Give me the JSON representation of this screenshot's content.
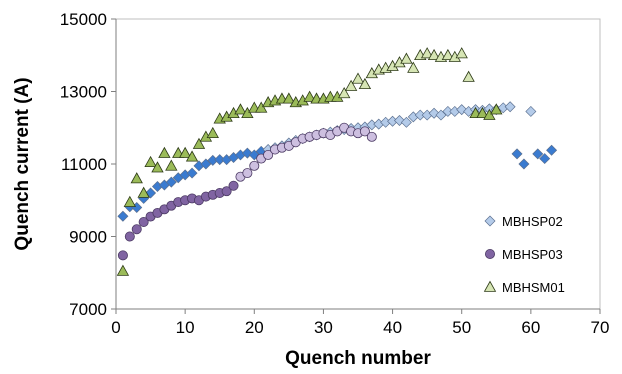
{
  "chart_data": {
    "type": "scatter",
    "title": "",
    "xlabel": "Quench number",
    "ylabel": "Quench current (A)",
    "xlim": [
      0,
      70
    ],
    "ylim": [
      7000,
      15000
    ],
    "xticks": [
      0,
      10,
      20,
      30,
      40,
      50,
      60,
      70
    ],
    "yticks": [
      7000,
      9000,
      11000,
      13000,
      15000
    ],
    "grid": false,
    "legend_position": "bottom-right",
    "series": [
      {
        "name": "MBHSP02",
        "marker": "diamond",
        "color": "#a9c4ea",
        "colors_note": "points drawn in two shades: light #a9c4ea and darker #3f7fc9",
        "points": [
          [
            1,
            9560,
            "dark"
          ],
          [
            2,
            9820,
            "dark"
          ],
          [
            3,
            9800,
            "dark"
          ],
          [
            4,
            10050,
            "dark"
          ],
          [
            5,
            10200,
            "dark"
          ],
          [
            6,
            10380,
            "dark"
          ],
          [
            7,
            10420,
            "dark"
          ],
          [
            8,
            10500,
            "dark"
          ],
          [
            9,
            10620,
            "dark"
          ],
          [
            10,
            10700,
            "dark"
          ],
          [
            11,
            10750,
            "dark"
          ],
          [
            12,
            10950,
            "dark"
          ],
          [
            13,
            11000,
            "dark"
          ],
          [
            14,
            11100,
            "dark"
          ],
          [
            15,
            11120,
            "dark"
          ],
          [
            16,
            11120,
            "dark"
          ],
          [
            17,
            11180,
            "dark"
          ],
          [
            18,
            11250,
            "dark"
          ],
          [
            19,
            11300,
            "dark"
          ],
          [
            20,
            11250,
            "dark"
          ],
          [
            21,
            11350,
            "dark"
          ],
          [
            22,
            11400,
            "light"
          ],
          [
            23,
            11450,
            "light"
          ],
          [
            24,
            11500,
            "light"
          ],
          [
            25,
            11580,
            "light"
          ],
          [
            26,
            11650,
            "light"
          ],
          [
            27,
            11700,
            "light"
          ],
          [
            28,
            11750,
            "light"
          ],
          [
            29,
            11800,
            "light"
          ],
          [
            30,
            11850,
            "light"
          ],
          [
            31,
            11880,
            "light"
          ],
          [
            32,
            11920,
            "light"
          ],
          [
            33,
            11950,
            "light"
          ],
          [
            34,
            11980,
            "light"
          ],
          [
            35,
            12000,
            "light"
          ],
          [
            36,
            12020,
            "light"
          ],
          [
            37,
            12080,
            "light"
          ],
          [
            38,
            12100,
            "light"
          ],
          [
            39,
            12150,
            "light"
          ],
          [
            40,
            12180,
            "light"
          ],
          [
            41,
            12200,
            "light"
          ],
          [
            42,
            12150,
            "light"
          ],
          [
            43,
            12300,
            "light"
          ],
          [
            44,
            12350,
            "light"
          ],
          [
            45,
            12350,
            "light"
          ],
          [
            46,
            12400,
            "light"
          ],
          [
            47,
            12350,
            "light"
          ],
          [
            48,
            12450,
            "light"
          ],
          [
            49,
            12450,
            "light"
          ],
          [
            50,
            12500,
            "light"
          ],
          [
            51,
            12450,
            "light"
          ],
          [
            52,
            12500,
            "light"
          ],
          [
            53,
            12480,
            "light"
          ],
          [
            54,
            12520,
            "light"
          ],
          [
            55,
            12500,
            "light"
          ],
          [
            56,
            12550,
            "light"
          ],
          [
            57,
            12580,
            "light"
          ],
          [
            58,
            11280,
            "dark"
          ],
          [
            59,
            11000,
            "dark"
          ],
          [
            60,
            12450,
            "light"
          ],
          [
            61,
            11280,
            "dark"
          ],
          [
            62,
            11150,
            "dark"
          ],
          [
            63,
            11380,
            "dark"
          ]
        ]
      },
      {
        "name": "MBHSP03",
        "marker": "circle",
        "color": "#8064a2",
        "colors_note": "points drawn in two shades: purple #8064a2 and light #ccc0da",
        "points": [
          [
            1,
            8480,
            "dark"
          ],
          [
            2,
            9000,
            "dark"
          ],
          [
            3,
            9200,
            "dark"
          ],
          [
            4,
            9400,
            "dark"
          ],
          [
            5,
            9550,
            "dark"
          ],
          [
            6,
            9650,
            "dark"
          ],
          [
            7,
            9750,
            "dark"
          ],
          [
            8,
            9850,
            "dark"
          ],
          [
            9,
            9950,
            "dark"
          ],
          [
            10,
            10000,
            "dark"
          ],
          [
            11,
            10050,
            "dark"
          ],
          [
            12,
            10000,
            "dark"
          ],
          [
            13,
            10100,
            "dark"
          ],
          [
            14,
            10150,
            "dark"
          ],
          [
            15,
            10200,
            "dark"
          ],
          [
            16,
            10250,
            "dark"
          ],
          [
            17,
            10400,
            "dark"
          ],
          [
            18,
            10650,
            "light"
          ],
          [
            19,
            10750,
            "light"
          ],
          [
            20,
            10950,
            "light"
          ],
          [
            21,
            11150,
            "light"
          ],
          [
            22,
            11250,
            "light"
          ],
          [
            23,
            11400,
            "light"
          ],
          [
            24,
            11450,
            "light"
          ],
          [
            25,
            11500,
            "light"
          ],
          [
            26,
            11600,
            "light"
          ],
          [
            27,
            11700,
            "light"
          ],
          [
            28,
            11750,
            "light"
          ],
          [
            29,
            11800,
            "light"
          ],
          [
            30,
            11850,
            "light"
          ],
          [
            31,
            11800,
            "light"
          ],
          [
            32,
            11900,
            "light"
          ],
          [
            33,
            12000,
            "light"
          ],
          [
            34,
            11900,
            "light"
          ],
          [
            35,
            11850,
            "light"
          ],
          [
            36,
            11900,
            "light"
          ],
          [
            37,
            11750,
            "light"
          ]
        ]
      },
      {
        "name": "MBHSM01",
        "marker": "triangle",
        "color": "#9bbb59",
        "colors_note": "points drawn in two shades: green #9bbb59 and pale #d7e4bd",
        "points": [
          [
            1,
            8050,
            "dark"
          ],
          [
            2,
            9950,
            "dark"
          ],
          [
            3,
            10600,
            "dark"
          ],
          [
            4,
            10200,
            "dark"
          ],
          [
            5,
            11050,
            "dark"
          ],
          [
            6,
            10900,
            "dark"
          ],
          [
            7,
            11300,
            "dark"
          ],
          [
            8,
            10950,
            "dark"
          ],
          [
            9,
            11300,
            "dark"
          ],
          [
            10,
            11300,
            "dark"
          ],
          [
            11,
            11200,
            "dark"
          ],
          [
            12,
            11550,
            "dark"
          ],
          [
            13,
            11750,
            "dark"
          ],
          [
            14,
            11850,
            "dark"
          ],
          [
            15,
            12250,
            "dark"
          ],
          [
            16,
            12300,
            "dark"
          ],
          [
            17,
            12400,
            "dark"
          ],
          [
            18,
            12500,
            "dark"
          ],
          [
            19,
            12400,
            "dark"
          ],
          [
            20,
            12550,
            "dark"
          ],
          [
            21,
            12550,
            "dark"
          ],
          [
            22,
            12700,
            "dark"
          ],
          [
            23,
            12750,
            "dark"
          ],
          [
            24,
            12800,
            "dark"
          ],
          [
            25,
            12800,
            "dark"
          ],
          [
            26,
            12700,
            "dark"
          ],
          [
            27,
            12750,
            "dark"
          ],
          [
            28,
            12850,
            "dark"
          ],
          [
            29,
            12800,
            "dark"
          ],
          [
            30,
            12800,
            "dark"
          ],
          [
            31,
            12850,
            "dark"
          ],
          [
            32,
            12850,
            "dark"
          ],
          [
            33,
            12950,
            "light"
          ],
          [
            34,
            13150,
            "light"
          ],
          [
            35,
            13350,
            "light"
          ],
          [
            36,
            13200,
            "light"
          ],
          [
            37,
            13500,
            "light"
          ],
          [
            38,
            13600,
            "light"
          ],
          [
            39,
            13650,
            "light"
          ],
          [
            40,
            13700,
            "light"
          ],
          [
            41,
            13800,
            "light"
          ],
          [
            42,
            13900,
            "light"
          ],
          [
            43,
            13650,
            "light"
          ],
          [
            44,
            14000,
            "light"
          ],
          [
            45,
            14050,
            "light"
          ],
          [
            46,
            14000,
            "light"
          ],
          [
            47,
            13950,
            "light"
          ],
          [
            48,
            14000,
            "light"
          ],
          [
            49,
            13950,
            "light"
          ],
          [
            50,
            14050,
            "light"
          ],
          [
            51,
            13400,
            "light"
          ],
          [
            52,
            12400,
            "dark"
          ],
          [
            53,
            12400,
            "dark"
          ],
          [
            54,
            12350,
            "dark"
          ],
          [
            55,
            12500,
            "dark"
          ]
        ]
      }
    ]
  },
  "palette": {
    "MBHSP02": {
      "light": "#b4cbe9",
      "dark": "#3a7bd0",
      "stroke": "#5a6f8f"
    },
    "MBHSP03": {
      "light": "#cdbfe0",
      "dark": "#8064a2",
      "stroke": "#4b3a63"
    },
    "MBHSM01": {
      "light": "#d6e5b4",
      "dark": "#9bbb59",
      "stroke": "#2d3a17"
    }
  }
}
